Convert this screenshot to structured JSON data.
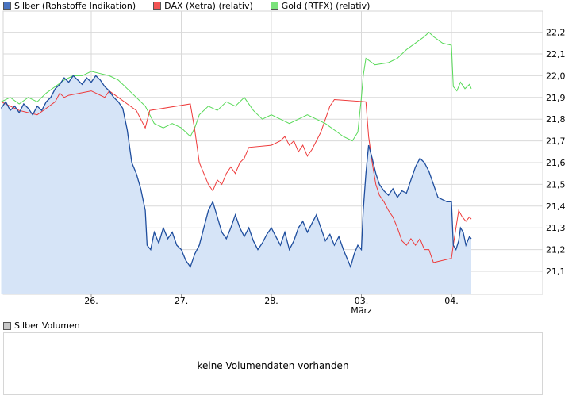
{
  "colors": {
    "silver": "#1f4e9e",
    "silver_fill": "#d6e4f7",
    "dax": "#ee3a3a",
    "gold": "#57d957",
    "grid": "#d9d9d9",
    "frame": "#d6d6d6",
    "volume_swatch": "#c8c8c8"
  },
  "legend": {
    "silver": "Silber (Rohstoffe Indikation)",
    "dax": "DAX (Xetra) (relativ)",
    "gold": "Gold (RTFX) (relativ)"
  },
  "volume": {
    "legend": "Silber Volumen",
    "message": "keine Volumendaten vorhanden"
  },
  "chart_data": {
    "type": "line",
    "title": "",
    "xlabel": "",
    "ylabel": "",
    "x_range": [
      25.0,
      5.0
    ],
    "ylim": [
      21.0,
      22.25
    ],
    "yticks": [
      "22,2",
      "22,1",
      "22,0",
      "21,9",
      "21,8",
      "21,7",
      "21,6",
      "21,5",
      "21,4",
      "21,3",
      "21,2",
      "21,1"
    ],
    "ytick_values": [
      22.2,
      22.1,
      22.0,
      21.9,
      21.8,
      21.7,
      21.6,
      21.5,
      21.4,
      21.3,
      21.2,
      21.1
    ],
    "xticks": [
      {
        "t": 26.0,
        "label": "26."
      },
      {
        "t": 27.0,
        "label": "27."
      },
      {
        "t": 28.0,
        "label": "28."
      },
      {
        "t": 29.0,
        "label": "03.",
        "sub": "März"
      },
      {
        "t": 30.0,
        "label": "04."
      }
    ],
    "series": [
      {
        "name": "Silber (Rohstoffe Indikation)",
        "kind": "area",
        "points": [
          [
            25.0,
            21.85
          ],
          [
            25.05,
            21.88
          ],
          [
            25.1,
            21.84
          ],
          [
            25.15,
            21.86
          ],
          [
            25.2,
            21.83
          ],
          [
            25.25,
            21.87
          ],
          [
            25.3,
            21.85
          ],
          [
            25.35,
            21.82
          ],
          [
            25.4,
            21.86
          ],
          [
            25.45,
            21.84
          ],
          [
            25.5,
            21.88
          ],
          [
            25.55,
            21.9
          ],
          [
            25.6,
            21.94
          ],
          [
            25.65,
            21.96
          ],
          [
            25.7,
            21.99
          ],
          [
            25.75,
            21.97
          ],
          [
            25.8,
            22.0
          ],
          [
            25.85,
            21.98
          ],
          [
            25.9,
            21.96
          ],
          [
            25.95,
            21.99
          ],
          [
            26.0,
            21.97
          ],
          [
            26.05,
            22.0
          ],
          [
            26.1,
            21.98
          ],
          [
            26.15,
            21.95
          ],
          [
            26.2,
            21.93
          ],
          [
            26.25,
            21.9
          ],
          [
            26.3,
            21.88
          ],
          [
            26.35,
            21.85
          ],
          [
            26.4,
            21.75
          ],
          [
            26.45,
            21.6
          ],
          [
            26.5,
            21.55
          ],
          [
            26.55,
            21.48
          ],
          [
            26.6,
            21.38
          ],
          [
            26.62,
            21.22
          ],
          [
            26.66,
            21.2
          ],
          [
            26.7,
            21.28
          ],
          [
            26.75,
            21.23
          ],
          [
            26.8,
            21.3
          ],
          [
            26.85,
            21.25
          ],
          [
            26.9,
            21.28
          ],
          [
            26.95,
            21.22
          ],
          [
            27.0,
            21.2
          ],
          [
            27.05,
            21.15
          ],
          [
            27.1,
            21.12
          ],
          [
            27.15,
            21.18
          ],
          [
            27.2,
            21.22
          ],
          [
            27.25,
            21.3
          ],
          [
            27.3,
            21.38
          ],
          [
            27.35,
            21.42
          ],
          [
            27.4,
            21.35
          ],
          [
            27.45,
            21.28
          ],
          [
            27.5,
            21.25
          ],
          [
            27.55,
            21.3
          ],
          [
            27.6,
            21.36
          ],
          [
            27.65,
            21.3
          ],
          [
            27.7,
            21.26
          ],
          [
            27.75,
            21.3
          ],
          [
            27.8,
            21.24
          ],
          [
            27.85,
            21.2
          ],
          [
            27.9,
            21.23
          ],
          [
            27.95,
            21.27
          ],
          [
            28.0,
            21.3
          ],
          [
            28.05,
            21.26
          ],
          [
            28.1,
            21.22
          ],
          [
            28.15,
            21.28
          ],
          [
            28.2,
            21.2
          ],
          [
            28.25,
            21.24
          ],
          [
            28.3,
            21.3
          ],
          [
            28.35,
            21.33
          ],
          [
            28.4,
            21.28
          ],
          [
            28.45,
            21.32
          ],
          [
            28.5,
            21.36
          ],
          [
            28.55,
            21.3
          ],
          [
            28.6,
            21.24
          ],
          [
            28.65,
            21.27
          ],
          [
            28.7,
            21.22
          ],
          [
            28.75,
            21.26
          ],
          [
            28.8,
            21.2
          ],
          [
            28.85,
            21.15
          ],
          [
            28.88,
            21.12
          ],
          [
            28.92,
            21.18
          ],
          [
            28.96,
            21.22
          ],
          [
            29.0,
            21.2
          ],
          [
            29.02,
            21.38
          ],
          [
            29.05,
            21.55
          ],
          [
            29.08,
            21.68
          ],
          [
            29.12,
            21.62
          ],
          [
            29.16,
            21.55
          ],
          [
            29.2,
            21.5
          ],
          [
            29.25,
            21.47
          ],
          [
            29.3,
            21.45
          ],
          [
            29.35,
            21.48
          ],
          [
            29.4,
            21.44
          ],
          [
            29.45,
            21.47
          ],
          [
            29.5,
            21.46
          ],
          [
            29.55,
            21.52
          ],
          [
            29.6,
            21.58
          ],
          [
            29.65,
            21.62
          ],
          [
            29.7,
            21.6
          ],
          [
            29.75,
            21.56
          ],
          [
            29.8,
            21.5
          ],
          [
            29.85,
            21.44
          ],
          [
            29.9,
            21.43
          ],
          [
            29.95,
            21.42
          ],
          [
            30.0,
            21.42
          ],
          [
            30.02,
            21.22
          ],
          [
            30.05,
            21.2
          ],
          [
            30.08,
            21.24
          ],
          [
            30.1,
            21.3
          ],
          [
            30.13,
            21.28
          ],
          [
            30.16,
            21.22
          ],
          [
            30.2,
            21.26
          ],
          [
            30.22,
            21.25
          ]
        ]
      },
      {
        "name": "DAX (Xetra) (relativ)",
        "kind": "line",
        "points": [
          [
            25.0,
            21.88
          ],
          [
            25.1,
            21.86
          ],
          [
            25.2,
            21.84
          ],
          [
            25.3,
            21.83
          ],
          [
            25.4,
            21.82
          ],
          [
            25.5,
            21.85
          ],
          [
            25.6,
            21.88
          ],
          [
            25.65,
            21.92
          ],
          [
            25.7,
            21.9
          ],
          [
            25.75,
            21.91
          ],
          [
            26.0,
            21.93
          ],
          [
            26.05,
            21.92
          ],
          [
            26.15,
            21.9
          ],
          [
            26.2,
            21.93
          ],
          [
            26.3,
            21.9
          ],
          [
            26.4,
            21.87
          ],
          [
            26.5,
            21.84
          ],
          [
            26.55,
            21.8
          ],
          [
            26.6,
            21.76
          ],
          [
            26.65,
            21.84
          ],
          [
            27.1,
            21.87
          ],
          [
            27.15,
            21.75
          ],
          [
            27.2,
            21.6
          ],
          [
            27.25,
            21.55
          ],
          [
            27.3,
            21.5
          ],
          [
            27.35,
            21.47
          ],
          [
            27.4,
            21.52
          ],
          [
            27.45,
            21.5
          ],
          [
            27.5,
            21.55
          ],
          [
            27.55,
            21.58
          ],
          [
            27.6,
            21.55
          ],
          [
            27.65,
            21.6
          ],
          [
            27.7,
            21.62
          ],
          [
            27.75,
            21.67
          ],
          [
            28.0,
            21.68
          ],
          [
            28.1,
            21.7
          ],
          [
            28.15,
            21.72
          ],
          [
            28.2,
            21.68
          ],
          [
            28.25,
            21.7
          ],
          [
            28.3,
            21.65
          ],
          [
            28.35,
            21.68
          ],
          [
            28.4,
            21.63
          ],
          [
            28.45,
            21.66
          ],
          [
            28.5,
            21.7
          ],
          [
            28.55,
            21.74
          ],
          [
            28.6,
            21.8
          ],
          [
            28.65,
            21.86
          ],
          [
            28.7,
            21.89
          ],
          [
            29.05,
            21.88
          ],
          [
            29.08,
            21.72
          ],
          [
            29.12,
            21.6
          ],
          [
            29.16,
            21.5
          ],
          [
            29.2,
            21.45
          ],
          [
            29.25,
            21.42
          ],
          [
            29.3,
            21.38
          ],
          [
            29.35,
            21.35
          ],
          [
            29.4,
            21.3
          ],
          [
            29.45,
            21.24
          ],
          [
            29.5,
            21.22
          ],
          [
            29.55,
            21.25
          ],
          [
            29.6,
            21.22
          ],
          [
            29.65,
            21.25
          ],
          [
            29.7,
            21.2
          ],
          [
            29.75,
            21.2
          ],
          [
            29.8,
            21.14
          ],
          [
            30.0,
            21.16
          ],
          [
            30.02,
            21.22
          ],
          [
            30.05,
            21.3
          ],
          [
            30.08,
            21.38
          ],
          [
            30.12,
            21.35
          ],
          [
            30.16,
            21.33
          ],
          [
            30.2,
            21.35
          ],
          [
            30.22,
            21.34
          ]
        ]
      },
      {
        "name": "Gold (RTFX) (relativ)",
        "kind": "line",
        "points": [
          [
            25.0,
            21.88
          ],
          [
            25.1,
            21.9
          ],
          [
            25.2,
            21.87
          ],
          [
            25.3,
            21.9
          ],
          [
            25.4,
            21.88
          ],
          [
            25.5,
            21.92
          ],
          [
            25.6,
            21.95
          ],
          [
            25.7,
            21.98
          ],
          [
            25.8,
            22.0
          ],
          [
            25.9,
            22.0
          ],
          [
            26.0,
            22.02
          ],
          [
            26.1,
            22.01
          ],
          [
            26.2,
            22.0
          ],
          [
            26.3,
            21.98
          ],
          [
            26.4,
            21.94
          ],
          [
            26.5,
            21.9
          ],
          [
            26.6,
            21.86
          ],
          [
            26.65,
            21.82
          ],
          [
            26.7,
            21.78
          ],
          [
            26.8,
            21.76
          ],
          [
            26.9,
            21.78
          ],
          [
            27.0,
            21.76
          ],
          [
            27.1,
            21.72
          ],
          [
            27.15,
            21.76
          ],
          [
            27.2,
            21.82
          ],
          [
            27.3,
            21.86
          ],
          [
            27.4,
            21.84
          ],
          [
            27.5,
            21.88
          ],
          [
            27.6,
            21.86
          ],
          [
            27.7,
            21.9
          ],
          [
            27.8,
            21.84
          ],
          [
            27.9,
            21.8
          ],
          [
            28.0,
            21.82
          ],
          [
            28.1,
            21.8
          ],
          [
            28.2,
            21.78
          ],
          [
            28.3,
            21.8
          ],
          [
            28.4,
            21.82
          ],
          [
            28.5,
            21.8
          ],
          [
            28.6,
            21.78
          ],
          [
            28.7,
            21.75
          ],
          [
            28.8,
            21.72
          ],
          [
            28.9,
            21.7
          ],
          [
            28.96,
            21.74
          ],
          [
            29.0,
            21.9
          ],
          [
            29.02,
            22.0
          ],
          [
            29.05,
            22.08
          ],
          [
            29.15,
            22.05
          ],
          [
            29.3,
            22.06
          ],
          [
            29.4,
            22.08
          ],
          [
            29.5,
            22.12
          ],
          [
            29.6,
            22.15
          ],
          [
            29.7,
            22.18
          ],
          [
            29.75,
            22.2
          ],
          [
            29.8,
            22.18
          ],
          [
            29.9,
            22.15
          ],
          [
            30.0,
            22.14
          ],
          [
            30.02,
            21.95
          ],
          [
            30.06,
            21.93
          ],
          [
            30.1,
            21.97
          ],
          [
            30.15,
            21.94
          ],
          [
            30.2,
            21.96
          ],
          [
            30.22,
            21.94
          ]
        ]
      }
    ],
    "volume": {
      "legend": "Silber Volumen",
      "message": "keine Volumendaten vorhanden"
    }
  }
}
